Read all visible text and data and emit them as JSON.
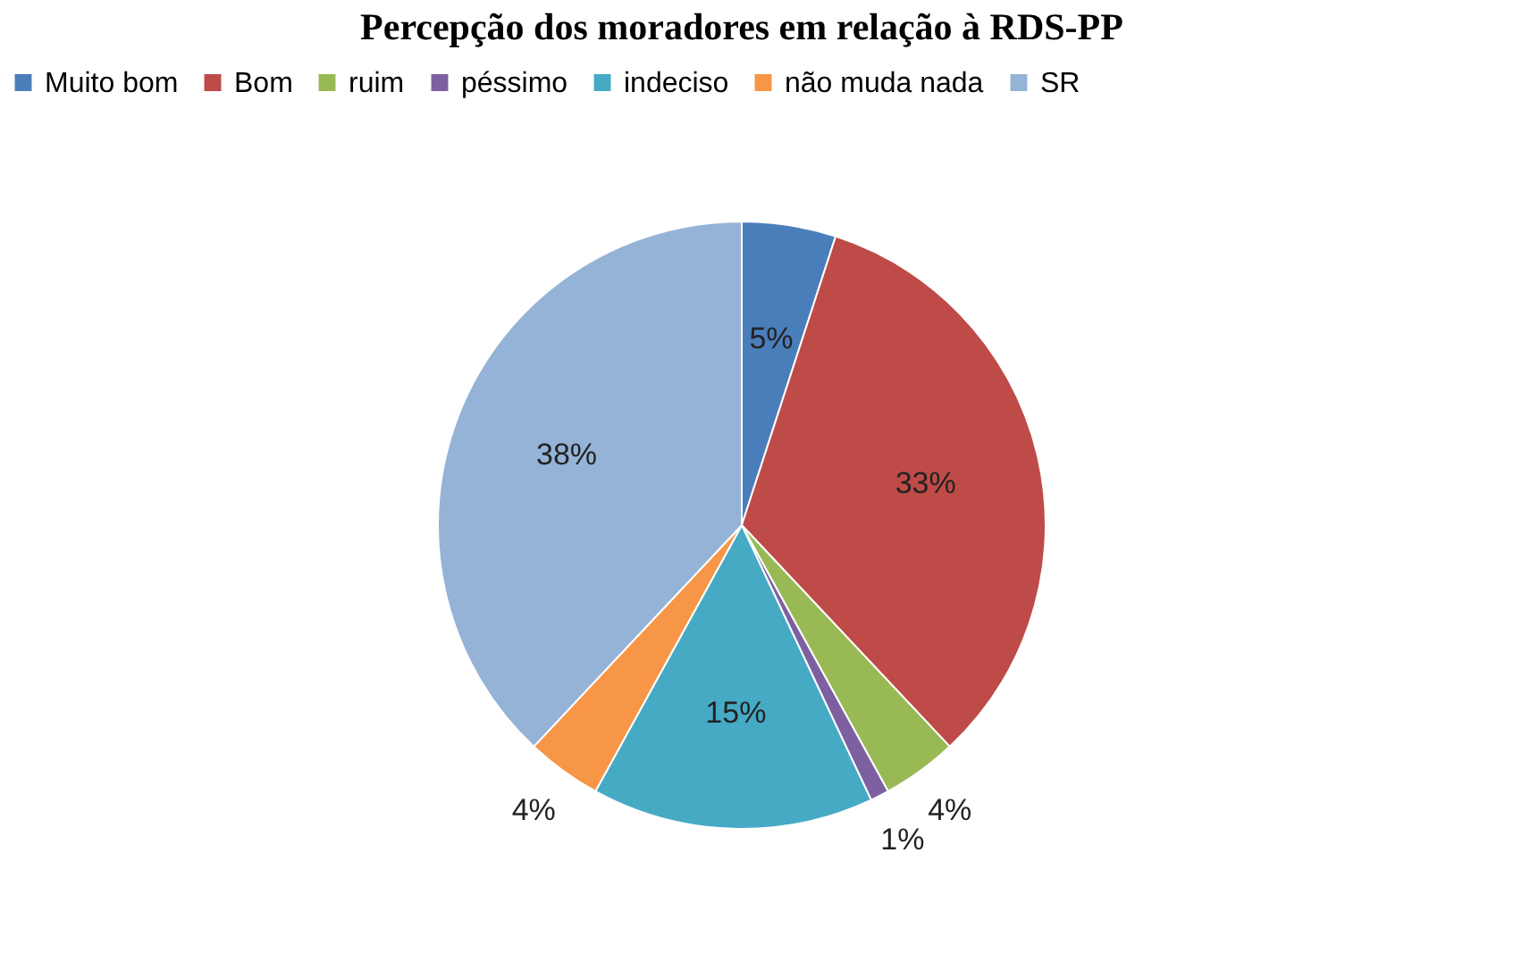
{
  "chart_data": {
    "type": "pie",
    "title": "Percepção dos moradores em relação à RDS-PP",
    "categories": [
      "Muito bom",
      "Bom",
      "ruim",
      "péssimo",
      "indeciso",
      "não muda nada",
      "SR"
    ],
    "values": [
      5,
      33,
      4,
      1,
      15,
      4,
      38
    ],
    "colors": [
      "#4a7ebb",
      "#be4b48",
      "#98b954",
      "#7d60a0",
      "#46aac5",
      "#f79646",
      "#95b3d7"
    ],
    "value_labels": [
      "5%",
      "33%",
      "4%",
      "1%",
      "15%",
      "4%",
      "38%"
    ],
    "legend": "top"
  }
}
